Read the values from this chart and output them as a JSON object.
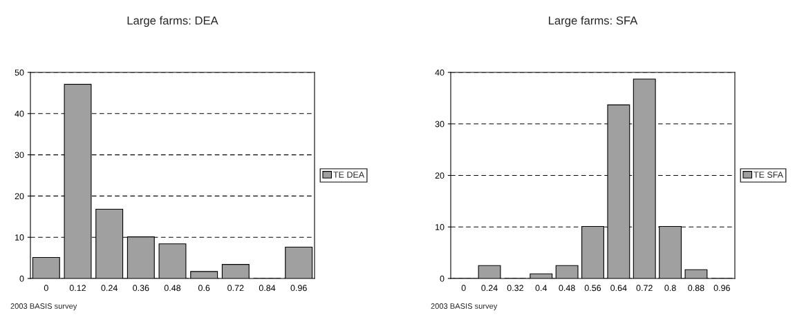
{
  "chart_data": [
    {
      "type": "bar",
      "title": "Large farms: DEA",
      "categories": [
        "0",
        "0.12",
        "0.24",
        "0.36",
        "0.48",
        "0.6",
        "0.72",
        "0.84",
        "0.96"
      ],
      "series": [
        {
          "name": "TE DEA",
          "color": "#a0a0a0",
          "values": [
            5.1,
            47.1,
            16.8,
            10.1,
            8.4,
            1.7,
            3.4,
            0,
            7.6
          ]
        }
      ],
      "ylim": [
        0,
        50
      ],
      "yticks": [
        0,
        10,
        20,
        30,
        40,
        50
      ],
      "grid": "y",
      "legend": "right",
      "annotations": [
        "2003 BASIS survey"
      ]
    },
    {
      "type": "bar",
      "title": "Large farms: SFA",
      "categories": [
        "0",
        "0.24",
        "0.32",
        "0.4",
        "0.48",
        "0.56",
        "0.64",
        "0.72",
        "0.8",
        "0.88",
        "0.96"
      ],
      "series": [
        {
          "name": "TE SFA",
          "color": "#a0a0a0",
          "values": [
            0,
            2.5,
            0,
            0.9,
            2.5,
            10.1,
            33.7,
            38.7,
            10.1,
            1.7,
            0
          ]
        }
      ],
      "ylim": [
        0,
        40
      ],
      "yticks": [
        0,
        10,
        20,
        30,
        40
      ],
      "grid": "y",
      "legend": "right",
      "annotations": [
        "2003 BASIS survey"
      ]
    }
  ]
}
